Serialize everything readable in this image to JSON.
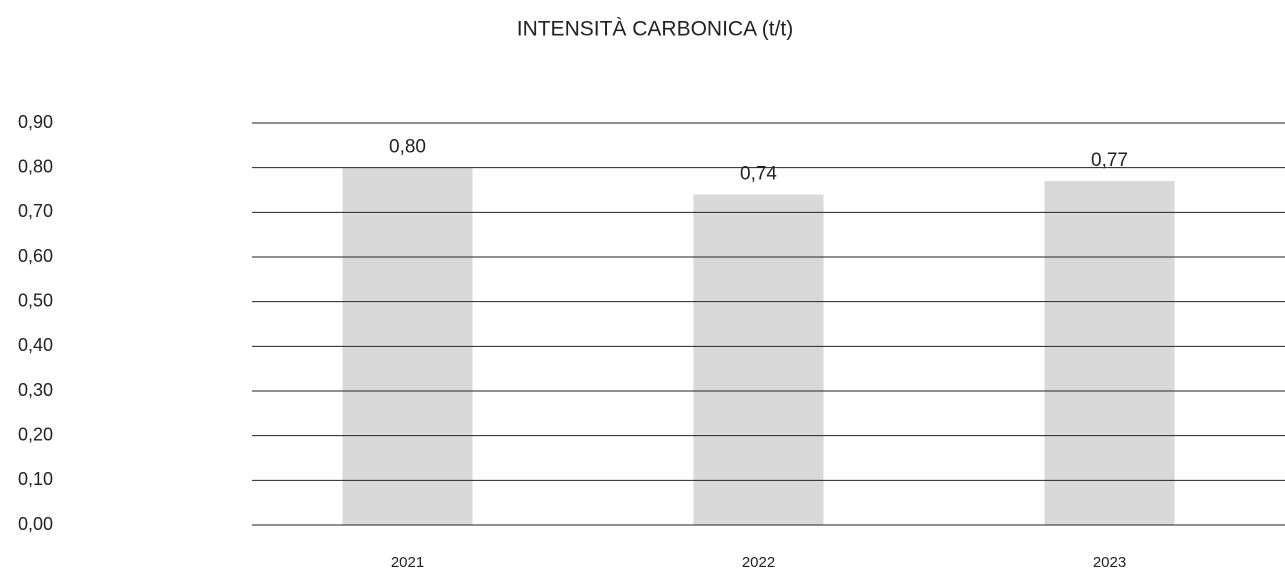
{
  "chart_data": {
    "type": "bar",
    "title": "INTENSITÀ CARBONICA (t/t)",
    "categories": [
      "2021",
      "2022",
      "2023"
    ],
    "values": [
      0.8,
      0.74,
      0.77
    ],
    "value_labels": [
      "0,80",
      "0,74",
      "0,77"
    ],
    "color": "#d9d9d9",
    "ylim": [
      0,
      0.9
    ],
    "yticks": [
      {
        "value": 0,
        "label": "0,00"
      },
      {
        "value": 0.1,
        "label": "0,10"
      },
      {
        "value": 0.2,
        "label": "0,20"
      },
      {
        "value": 0.3,
        "label": "0,30"
      },
      {
        "value": 0.4,
        "label": "0,40"
      },
      {
        "value": 0.5,
        "label": "0,50"
      },
      {
        "value": 0.6,
        "label": "0,60"
      },
      {
        "value": 0.7,
        "label": "0,70"
      },
      {
        "value": 0.8,
        "label": "0,80"
      },
      {
        "value": 0.9,
        "label": "0,90"
      }
    ],
    "grid": true
  }
}
